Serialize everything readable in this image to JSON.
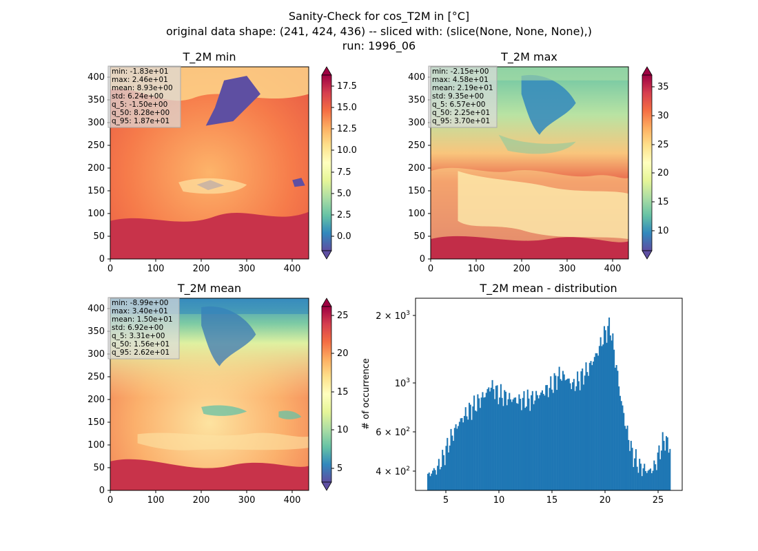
{
  "figure": {
    "title_lines": [
      "Sanity-Check for cos_T2M in [°C]",
      "original data shape: (241, 424, 436) -- sliced with: (slice(None, None, None),)",
      "run: 1996_06"
    ]
  },
  "colors": {
    "colormap": "Spectral_r",
    "hist_bar": "#1f77b4"
  },
  "chart_data": [
    {
      "type": "heatmap",
      "title": "T_2M min",
      "x_ticks": [
        0,
        100,
        200,
        300,
        400
      ],
      "y_ticks": [
        0,
        50,
        100,
        150,
        200,
        250,
        300,
        350,
        400
      ],
      "xlim": [
        0,
        436
      ],
      "ylim": [
        0,
        424
      ],
      "colorbar": {
        "cmap": "Spectral_r",
        "range": [
          -1.5,
          18.7
        ],
        "ticks": [
          "0.0",
          "2.5",
          "5.0",
          "7.5",
          "10.0",
          "12.5",
          "15.0",
          "17.5"
        ],
        "extend": "both"
      },
      "stats": [
        "min: -1.83e+01",
        "max: 2.46e+01",
        "mean: 8.93e+00",
        "std: 6.24e+00",
        "q_5: -1.50e+00",
        "q_50: 8.28e+00",
        "q_95: 1.87e+01"
      ]
    },
    {
      "type": "heatmap",
      "title": "T_2M max",
      "x_ticks": [
        0,
        100,
        200,
        300,
        400
      ],
      "y_ticks": [
        0,
        50,
        100,
        150,
        200,
        250,
        300,
        350,
        400
      ],
      "xlim": [
        0,
        436
      ],
      "ylim": [
        0,
        424
      ],
      "colorbar": {
        "cmap": "Spectral_r",
        "range": [
          6.57,
          37.0
        ],
        "ticks": [
          "10",
          "15",
          "20",
          "25",
          "30",
          "35"
        ],
        "extend": "both"
      },
      "stats": [
        "min: -2.15e+00",
        "max: 4.58e+01",
        "mean: 2.19e+01",
        "std: 9.35e+00",
        "q_5: 6.57e+00",
        "q_50: 2.25e+01",
        "q_95: 3.70e+01"
      ]
    },
    {
      "type": "heatmap",
      "title": "T_2M mean",
      "x_ticks": [
        0,
        100,
        200,
        300,
        400
      ],
      "y_ticks": [
        0,
        50,
        100,
        150,
        200,
        250,
        300,
        350,
        400
      ],
      "xlim": [
        0,
        436
      ],
      "ylim": [
        0,
        424
      ],
      "colorbar": {
        "cmap": "Spectral_r",
        "range": [
          3.31,
          26.2
        ],
        "ticks": [
          "5",
          "10",
          "15",
          "20",
          "25"
        ],
        "extend": "both"
      },
      "stats": [
        "min: -8.99e+00",
        "max: 3.40e+01",
        "mean: 1.50e+01",
        "std: 6.92e+00",
        "q_5: 3.31e+00",
        "q_50: 1.56e+01",
        "q_95: 2.62e+01"
      ]
    },
    {
      "type": "bar",
      "title": "T_2M mean - distribution",
      "ylabel": "# of occurrence",
      "yscale": "log",
      "xlim": [
        2.2,
        27.3
      ],
      "ylim": [
        320,
        2400
      ],
      "x_ticks": [
        "5",
        "10",
        "15",
        "20",
        "25"
      ],
      "y_ticks": [
        {
          "base": "4",
          "exp": "2",
          "value": 400
        },
        {
          "base": "6",
          "exp": "2",
          "value": 600
        },
        {
          "base": "",
          "exp": "3",
          "value": 1000
        },
        {
          "base": "2",
          "exp": "3",
          "value": 2000
        }
      ],
      "curve": [
        [
          3.3,
          360
        ],
        [
          3.6,
          385
        ],
        [
          4.2,
          400
        ],
        [
          4.8,
          450
        ],
        [
          5.5,
          550
        ],
        [
          6.2,
          640
        ],
        [
          7.0,
          720
        ],
        [
          8.0,
          800
        ],
        [
          8.8,
          880
        ],
        [
          9.3,
          960
        ],
        [
          10.0,
          880
        ],
        [
          11.0,
          840
        ],
        [
          12.0,
          820
        ],
        [
          13.0,
          830
        ],
        [
          14.0,
          880
        ],
        [
          15.0,
          960
        ],
        [
          15.8,
          1080
        ],
        [
          16.3,
          1050
        ],
        [
          17.0,
          960
        ],
        [
          17.6,
          1020
        ],
        [
          18.5,
          1150
        ],
        [
          19.3,
          1350
        ],
        [
          20.0,
          1650
        ],
        [
          20.5,
          1800
        ],
        [
          21.0,
          1250
        ],
        [
          21.5,
          840
        ],
        [
          22.0,
          620
        ],
        [
          22.6,
          470
        ],
        [
          23.3,
          410
        ],
        [
          24.2,
          390
        ],
        [
          24.7,
          410
        ],
        [
          25.1,
          470
        ],
        [
          25.6,
          550
        ],
        [
          26.2,
          500
        ]
      ]
    }
  ]
}
